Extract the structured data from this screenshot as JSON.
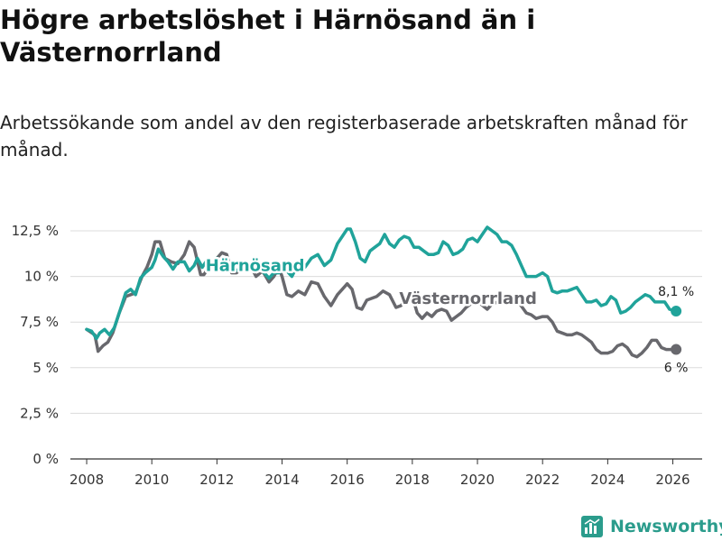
{
  "title": "Högre arbetslöshet i Härnösand än i Västernorrland",
  "subtitle": "Arbetssökande som andel av den registerbaserade arbetskraften månad för månad.",
  "brand": {
    "name": "Newsworthy",
    "icon": "bar-chart-icon",
    "color": "#2b9c8c"
  },
  "chart_data": {
    "type": "line",
    "title": "Högre arbetslöshet i Härnösand än i Västernorrland",
    "xlabel": "",
    "ylabel": "",
    "xlim": [
      2007.5,
      2026.9
    ],
    "ylim": [
      0,
      12.5
    ],
    "x_ticks": [
      2008,
      2010,
      2012,
      2014,
      2016,
      2018,
      2020,
      2022,
      2024,
      2026
    ],
    "x_tick_labels": [
      "2008",
      "2010",
      "2012",
      "2014",
      "2016",
      "2018",
      "2020",
      "2022",
      "2024",
      "2026"
    ],
    "y_ticks": [
      0,
      2.5,
      5,
      7.5,
      10,
      12.5
    ],
    "y_tick_labels": [
      "0 %",
      "2,5 %",
      "5 %",
      "7,5 %",
      "10 %",
      "12,5 %"
    ],
    "grid": true,
    "series": [
      {
        "name": "Västernorrland",
        "color": "#68686d",
        "end_label": "6 %",
        "x": [
          2008.0,
          2008.25,
          2008.35,
          2008.5,
          2008.65,
          2008.8,
          2009.0,
          2009.2,
          2009.5,
          2009.7,
          2009.85,
          2010.0,
          2010.1,
          2010.25,
          2010.4,
          2010.6,
          2010.8,
          2011.0,
          2011.15,
          2011.3,
          2011.5,
          2011.6,
          2011.75,
          2011.9,
          2012.0,
          2012.15,
          2012.3,
          2012.45,
          2012.6,
          2012.75,
          2012.9,
          2013.0,
          2013.2,
          2013.4,
          2013.6,
          2013.75,
          2013.9,
          2014.0,
          2014.15,
          2014.3,
          2014.5,
          2014.7,
          2014.9,
          2015.1,
          2015.3,
          2015.5,
          2015.7,
          2015.85,
          2016.0,
          2016.15,
          2016.3,
          2016.45,
          2016.6,
          2016.75,
          2016.9,
          2017.1,
          2017.3,
          2017.5,
          2017.65,
          2017.8,
          2018.0,
          2018.15,
          2018.3,
          2018.45,
          2018.6,
          2018.75,
          2018.9,
          2019.05,
          2019.2,
          2019.35,
          2019.5,
          2019.65,
          2019.8,
          2020.0,
          2020.1,
          2020.3,
          2020.5,
          2020.7,
          2020.9,
          2021.1,
          2021.3,
          2021.5,
          2021.65,
          2021.8,
          2022.0,
          2022.15,
          2022.3,
          2022.45,
          2022.6,
          2022.75,
          2022.9,
          2023.05,
          2023.2,
          2023.35,
          2023.5,
          2023.65,
          2023.8,
          2024.0,
          2024.15,
          2024.3,
          2024.45,
          2024.6,
          2024.75,
          2024.9,
          2025.05,
          2025.2,
          2025.35,
          2025.5,
          2025.65,
          2025.8,
          2025.95,
          2026.1
        ],
        "values": [
          7.1,
          6.8,
          5.9,
          6.2,
          6.4,
          6.9,
          8.0,
          8.9,
          9.1,
          10.0,
          10.5,
          11.2,
          11.9,
          11.9,
          11.0,
          10.8,
          10.7,
          11.2,
          11.9,
          11.6,
          10.1,
          10.1,
          10.5,
          10.6,
          11.0,
          11.3,
          11.2,
          10.2,
          10.2,
          10.4,
          10.8,
          10.7,
          10.0,
          10.3,
          9.7,
          10.0,
          10.5,
          10.0,
          9.0,
          8.9,
          9.2,
          9.0,
          9.7,
          9.6,
          8.9,
          8.4,
          9.0,
          9.3,
          9.6,
          9.3,
          8.3,
          8.2,
          8.7,
          8.8,
          8.9,
          9.2,
          9.0,
          8.3,
          8.4,
          8.7,
          8.9,
          8.0,
          7.7,
          8.0,
          7.8,
          8.1,
          8.2,
          8.1,
          7.6,
          7.8,
          8.0,
          8.3,
          8.5,
          8.6,
          8.5,
          8.2,
          8.6,
          8.5,
          8.7,
          8.5,
          8.5,
          8.0,
          7.9,
          7.7,
          7.8,
          7.8,
          7.5,
          7.0,
          6.9,
          6.8,
          6.8,
          6.9,
          6.8,
          6.6,
          6.4,
          6.0,
          5.8,
          5.8,
          5.9,
          6.2,
          6.3,
          6.1,
          5.7,
          5.6,
          5.8,
          6.1,
          6.5,
          6.5,
          6.1,
          6.0,
          6.0,
          6.0
        ]
      },
      {
        "name": "Härnösand",
        "color": "#20a39a",
        "end_label": "8,1 %",
        "x": [
          2008.0,
          2008.15,
          2008.3,
          2008.4,
          2008.55,
          2008.7,
          2008.85,
          2009.0,
          2009.2,
          2009.35,
          2009.5,
          2009.65,
          2009.8,
          2010.0,
          2010.1,
          2010.2,
          2010.35,
          2010.5,
          2010.65,
          2010.8,
          2011.0,
          2011.15,
          2011.3,
          2011.4,
          2011.55,
          2011.7,
          2011.85,
          2012.0,
          2012.1,
          2012.2,
          2012.35,
          2012.55,
          2012.7,
          2012.85,
          2013.0,
          2013.15,
          2013.3,
          2013.45,
          2013.6,
          2013.75,
          2013.9,
          2014.1,
          2014.3,
          2014.5,
          2014.7,
          2014.9,
          2015.1,
          2015.3,
          2015.5,
          2015.7,
          2015.85,
          2016.0,
          2016.1,
          2016.25,
          2016.4,
          2016.55,
          2016.7,
          2016.85,
          2017.0,
          2017.15,
          2017.3,
          2017.45,
          2017.6,
          2017.75,
          2017.9,
          2018.05,
          2018.2,
          2018.35,
          2018.5,
          2018.65,
          2018.8,
          2018.95,
          2019.1,
          2019.25,
          2019.4,
          2019.55,
          2019.7,
          2019.85,
          2020.0,
          2020.15,
          2020.3,
          2020.45,
          2020.6,
          2020.75,
          2020.9,
          2021.05,
          2021.2,
          2021.35,
          2021.5,
          2021.65,
          2021.8,
          2022.0,
          2022.15,
          2022.3,
          2022.45,
          2022.6,
          2022.75,
          2022.9,
          2023.05,
          2023.2,
          2023.35,
          2023.5,
          2023.65,
          2023.8,
          2023.95,
          2024.1,
          2024.25,
          2024.4,
          2024.55,
          2024.7,
          2024.85,
          2025.0,
          2025.15,
          2025.3,
          2025.45,
          2025.6,
          2025.75,
          2025.9,
          2026.1
        ],
        "values": [
          7.1,
          7.0,
          6.6,
          6.9,
          7.1,
          6.8,
          7.2,
          8.0,
          9.1,
          9.3,
          9.0,
          9.9,
          10.2,
          10.5,
          10.9,
          11.5,
          11.1,
          10.8,
          10.4,
          10.8,
          10.8,
          10.3,
          10.6,
          11.0,
          10.5,
          10.9,
          10.8,
          11.0,
          10.5,
          10.6,
          10.3,
          10.3,
          10.4,
          10.6,
          10.6,
          10.4,
          10.4,
          10.2,
          9.9,
          10.2,
          10.2,
          10.4,
          10.0,
          10.7,
          10.5,
          11.0,
          11.2,
          10.6,
          10.9,
          11.8,
          12.2,
          12.6,
          12.6,
          11.9,
          11.0,
          10.8,
          11.4,
          11.6,
          11.8,
          12.3,
          11.8,
          11.6,
          12.0,
          12.2,
          12.1,
          11.6,
          11.6,
          11.4,
          11.2,
          11.2,
          11.3,
          11.9,
          11.7,
          11.2,
          11.3,
          11.5,
          12.0,
          12.1,
          11.9,
          12.3,
          12.7,
          12.5,
          12.3,
          11.9,
          11.9,
          11.7,
          11.2,
          10.6,
          10.0,
          10.0,
          10.0,
          10.2,
          10.0,
          9.2,
          9.1,
          9.2,
          9.2,
          9.3,
          9.4,
          9.0,
          8.6,
          8.6,
          8.7,
          8.4,
          8.5,
          8.9,
          8.7,
          8.0,
          8.1,
          8.3,
          8.6,
          8.8,
          9.0,
          8.9,
          8.6,
          8.6,
          8.6,
          8.2,
          8.1
        ]
      }
    ]
  }
}
